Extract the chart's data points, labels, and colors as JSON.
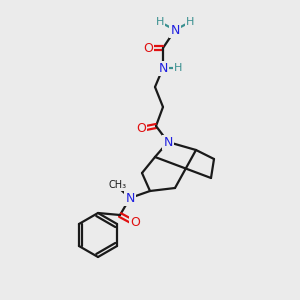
{
  "bg_color": "#ebebeb",
  "atom_colors": {
    "C": "#1a1a1a",
    "N": "#2020e0",
    "O": "#e01010",
    "H": "#3a9090"
  },
  "bond_color": "#1a1a1a",
  "bond_width": 1.6
}
